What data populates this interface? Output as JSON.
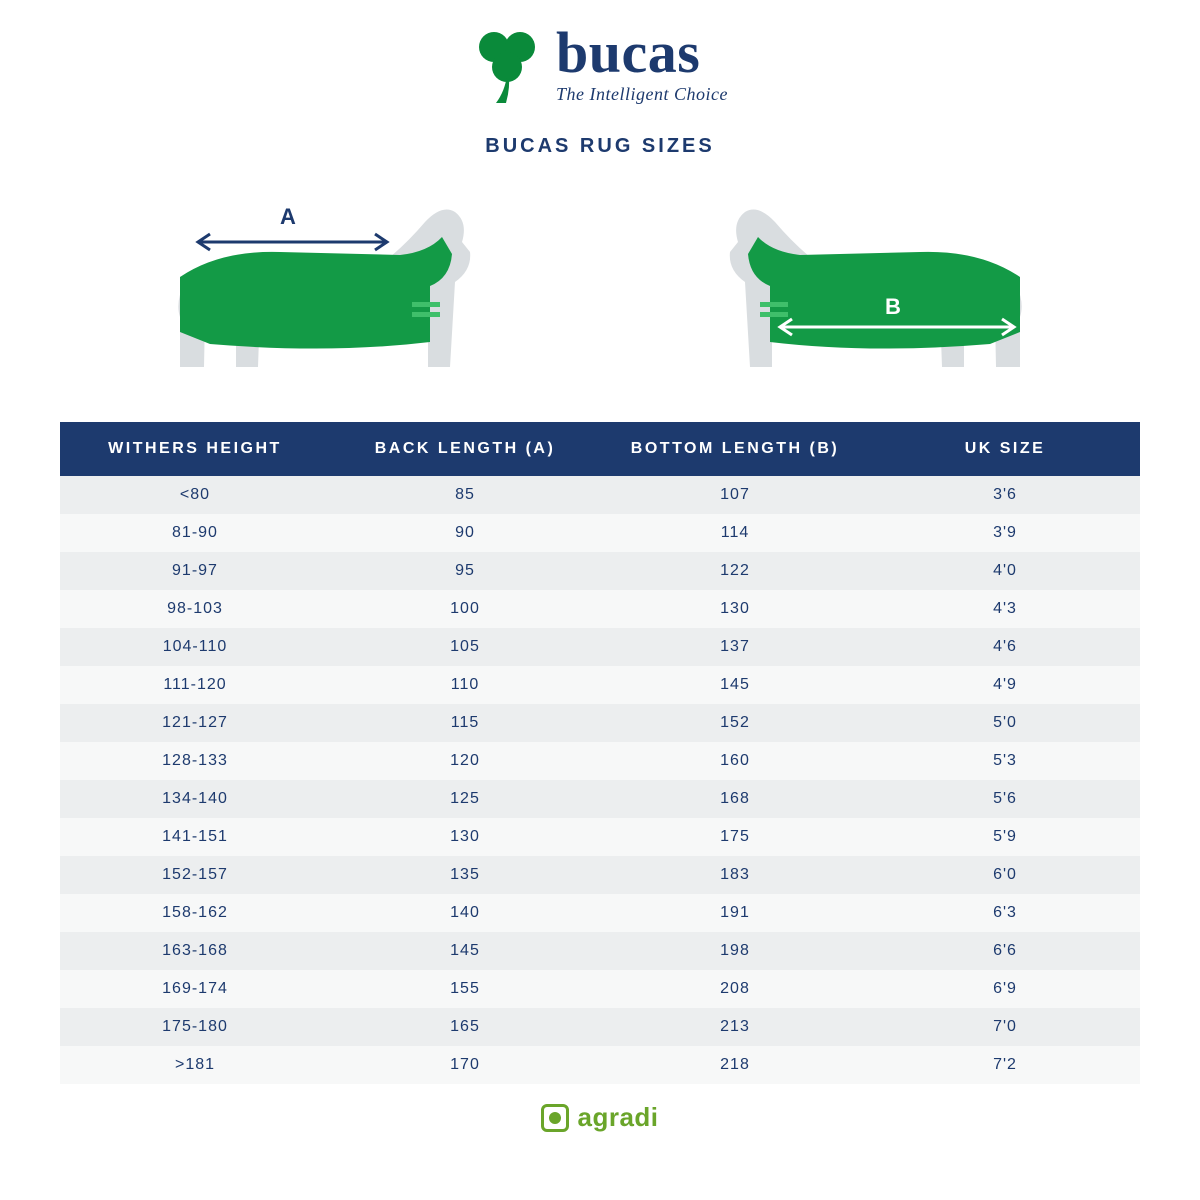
{
  "colors": {
    "navy": "#1d3a6e",
    "green_dark": "#0a8a3a",
    "green_rug": "#139a46",
    "green_footer": "#6aa52a",
    "horse_sil": "#d9dde0",
    "header_bg": "#1d3a6e",
    "header_text": "#ffffff",
    "row_bg_a": "#eceeef",
    "row_bg_b": "#f7f8f8",
    "cell_text": "#1d3a6e",
    "white": "#ffffff"
  },
  "fonts": {
    "title_size": 20,
    "header_size": 16,
    "cell_size": 16
  },
  "logo": {
    "brand": "bucas",
    "tagline": "The Intelligent Choice"
  },
  "title": "BUCAS RUG SIZES",
  "diagram": {
    "label_a": "A",
    "label_b": "B"
  },
  "table": {
    "columns": [
      "WITHERS HEIGHT",
      "BACK LENGTH (A)",
      "BOTTOM LENGTH (B)",
      "UK SIZE"
    ],
    "rows": [
      [
        "<80",
        "85",
        "107",
        "3'6"
      ],
      [
        "81-90",
        "90",
        "114",
        "3'9"
      ],
      [
        "91-97",
        "95",
        "122",
        "4'0"
      ],
      [
        "98-103",
        "100",
        "130",
        "4'3"
      ],
      [
        "104-110",
        "105",
        "137",
        "4'6"
      ],
      [
        "111-120",
        "110",
        "145",
        "4'9"
      ],
      [
        "121-127",
        "115",
        "152",
        "5'0"
      ],
      [
        "128-133",
        "120",
        "160",
        "5'3"
      ],
      [
        "134-140",
        "125",
        "168",
        "5'6"
      ],
      [
        "141-151",
        "130",
        "175",
        "5'9"
      ],
      [
        "152-157",
        "135",
        "183",
        "6'0"
      ],
      [
        "158-162",
        "140",
        "191",
        "6'3"
      ],
      [
        "163-168",
        "145",
        "198",
        "6'6"
      ],
      [
        "169-174",
        "155",
        "208",
        "6'9"
      ],
      [
        "175-180",
        "165",
        "213",
        "7'0"
      ],
      [
        ">181",
        "170",
        "218",
        "7'2"
      ]
    ]
  },
  "footer": {
    "brand": "agradi"
  }
}
